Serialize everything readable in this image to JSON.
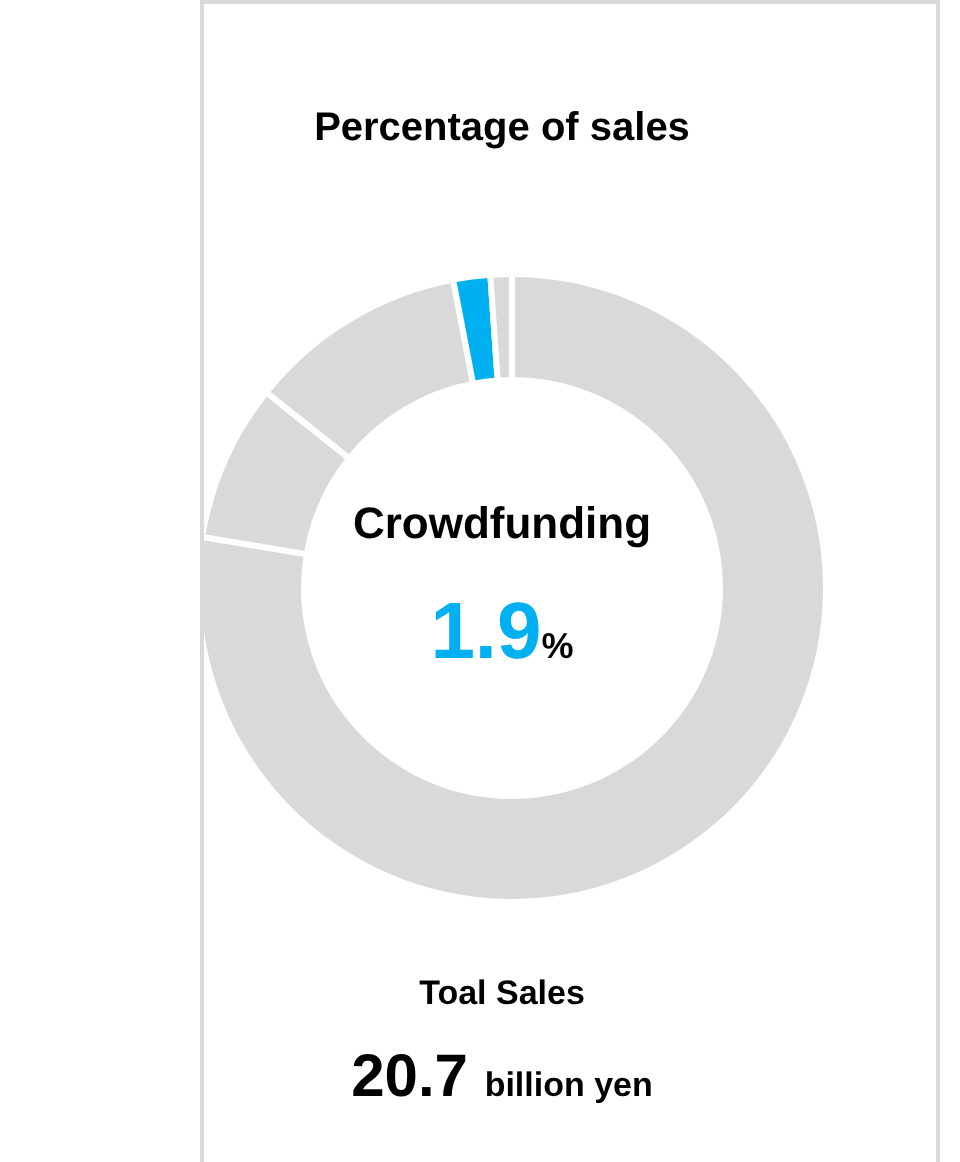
{
  "chart_data": {
    "type": "donut",
    "title": "Percentage of sales",
    "categories": [
      null,
      null,
      null,
      "Crowdfunding",
      null
    ],
    "values": [
      77.6,
      8.1,
      11.3,
      1.9,
      1.1
    ],
    "colors": [
      "#d9d9d9",
      "#d9d9d9",
      "#d9d9d9",
      "#00b0f0",
      "#d9d9d9"
    ],
    "value_labels": [
      null,
      null,
      null,
      "1.9%",
      null
    ],
    "annotations": [
      "Toal Sales",
      "20.7 billion yen"
    ]
  }
}
